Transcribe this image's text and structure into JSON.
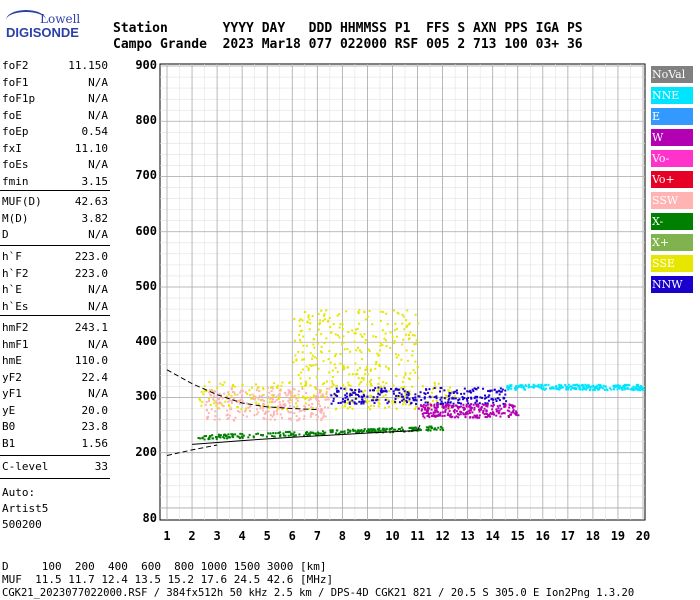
{
  "logo": {
    "line1": "Lowell",
    "line2": "DIGISONDE"
  },
  "header": {
    "labels": "Station       YYYY DAY   DDD HHMMSS P1  FFS S AXN PPS IGA PS",
    "values": "Campo Grande  2023 Mar18 077 022000 RSF 005 2 713 100 03+ 36"
  },
  "params_group1": [
    {
      "name": "foF2",
      "value": "11.150"
    },
    {
      "name": "foF1",
      "value": "N/A"
    },
    {
      "name": "foF1p",
      "value": "N/A"
    },
    {
      "name": "foE",
      "value": "N/A"
    },
    {
      "name": "foEp",
      "value": "0.54"
    },
    {
      "name": "fxI",
      "value": "11.10"
    },
    {
      "name": "foEs",
      "value": "N/A"
    },
    {
      "name": "fmin",
      "value": "3.15"
    }
  ],
  "params_group2": [
    {
      "name": "MUF(D)",
      "value": "42.63"
    },
    {
      "name": "M(D)",
      "value": "3.82"
    },
    {
      "name": "D",
      "value": "N/A"
    }
  ],
  "params_group3": [
    {
      "name": "h`F",
      "value": "223.0"
    },
    {
      "name": "h`F2",
      "value": "223.0"
    },
    {
      "name": "h`E",
      "value": "N/A"
    },
    {
      "name": "h`Es",
      "value": "N/A"
    }
  ],
  "params_group4": [
    {
      "name": "hmF2",
      "value": "243.1"
    },
    {
      "name": "hmF1",
      "value": "N/A"
    },
    {
      "name": "hmE",
      "value": "110.0"
    },
    {
      "name": "yF2",
      "value": "22.4"
    },
    {
      "name": "yF1",
      "value": "N/A"
    },
    {
      "name": "yE",
      "value": "20.0"
    },
    {
      "name": "B0",
      "value": "23.8"
    },
    {
      "name": "B1",
      "value": "1.56"
    }
  ],
  "c_level": {
    "name": "C-level",
    "value": "33"
  },
  "auto": {
    "line1": "Auto:",
    "line2": "Artist5",
    "line3": "500200"
  },
  "footer": {
    "d_line": "D     100  200  400  600  800 1000 1500 3000 [km]",
    "muf_line": "MUF  11.5 11.7 12.4 13.5 15.2 17.6 24.5 42.6 [MHz]",
    "info_line": "CGK21_2023077022000.RSF / 384fx512h 50 kHz 2.5 km / DPS-4D CGK21 821 / 20.5 S 305.0 E Ion2Png 1.3.20"
  },
  "legend": [
    {
      "label": "NoVal",
      "color": "#808080"
    },
    {
      "label": "NNE",
      "color": "#00e5ff"
    },
    {
      "label": "E",
      "color": "#3399ff"
    },
    {
      "label": "W",
      "color": "#b300b3"
    },
    {
      "label": "Vo-",
      "color": "#ff33cc"
    },
    {
      "label": "Vo+",
      "color": "#e60026"
    },
    {
      "label": "SSW",
      "color": "#ffb3b3"
    },
    {
      "label": "X-",
      "color": "#008000"
    },
    {
      "label": "X+",
      "color": "#80b34d"
    },
    {
      "label": "SSE",
      "color": "#e6e600"
    },
    {
      "label": "NNW",
      "color": "#1a00cc"
    }
  ],
  "chart_data": {
    "type": "scatter",
    "title": "",
    "xlabel": "",
    "ylabel": "",
    "xlim": [
      1,
      20
    ],
    "ylim": [
      80,
      900
    ],
    "x_ticks": [
      "1",
      "2",
      "3",
      "4",
      "5",
      "6",
      "7",
      "8",
      "9",
      "10",
      "11",
      "12",
      "13",
      "14",
      "15",
      "16",
      "17",
      "18",
      "19",
      "20"
    ],
    "y_ticks": [
      "200",
      "300",
      "400",
      "500",
      "600",
      "700",
      "800",
      "900"
    ],
    "bottom_label": "80",
    "grid": true,
    "clusters": [
      {
        "series": "SSE",
        "x_range": [
          2.2,
          12.5
        ],
        "h_range": [
          280,
          330
        ]
      },
      {
        "series": "SSW",
        "x_range": [
          2.5,
          7.5
        ],
        "h_range": [
          260,
          320
        ]
      },
      {
        "series": "NNW",
        "x_range": [
          7.5,
          14.5
        ],
        "h_range": [
          290,
          320
        ]
      },
      {
        "series": "X-",
        "x_range": [
          2.2,
          12.0
        ],
        "h_range": [
          225,
          245
        ]
      },
      {
        "series": "NNE",
        "x_range": [
          14.5,
          20.0
        ],
        "h_range": [
          315,
          325
        ]
      },
      {
        "series": "W",
        "x_range": [
          11.0,
          15.0
        ],
        "h_range": [
          265,
          290
        ]
      },
      {
        "series": "SSE",
        "x_range": [
          6.0,
          11.0
        ],
        "h_range": [
          330,
          460
        ]
      }
    ],
    "trace_lower": [
      [
        2.0,
        215
      ],
      [
        4.0,
        222
      ],
      [
        6.0,
        228
      ],
      [
        8.0,
        233
      ],
      [
        10.0,
        238
      ],
      [
        11.0,
        240
      ],
      [
        11.1,
        250
      ]
    ],
    "trace_upper": [
      [
        1.0,
        350
      ],
      [
        2.0,
        325
      ],
      [
        3.0,
        305
      ],
      [
        4.0,
        290
      ],
      [
        5.0,
        283
      ],
      [
        6.0,
        280
      ],
      [
        7.0,
        278
      ]
    ],
    "trace_dashed_low": [
      [
        1.0,
        195
      ],
      [
        2.0,
        205
      ],
      [
        3.0,
        214
      ]
    ]
  }
}
